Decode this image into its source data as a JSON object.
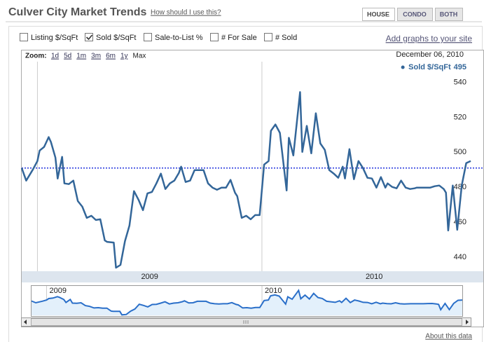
{
  "header": {
    "title": "Culver City Market Trends",
    "help_link": "How should I use this?"
  },
  "tabs": [
    {
      "label": "HOUSE",
      "active": true
    },
    {
      "label": "CONDO",
      "active": false
    },
    {
      "label": "BOTH",
      "active": false
    }
  ],
  "checkboxes": [
    {
      "label": "Listing $/SqFt",
      "checked": false
    },
    {
      "label": "Sold $/SqFt",
      "checked": true
    },
    {
      "label": "Sale-to-List %",
      "checked": false
    },
    {
      "label": "# For Sale",
      "checked": false
    },
    {
      "label": "# Sold",
      "checked": false
    }
  ],
  "embed_link": "Add graphs to your site",
  "zoom": {
    "label": "Zoom:",
    "options": [
      "1d",
      "5d",
      "1m",
      "3m",
      "6m",
      "1y",
      "Max"
    ],
    "selected": 6
  },
  "footer_link": "About this data",
  "chart_data": {
    "type": "line",
    "date_label": "December 06, 2010",
    "x": [
      2008.93,
      2008.95,
      2008.98,
      2009,
      2009.01,
      2009.03,
      2009.05,
      2009.06,
      2009.08,
      2009.09,
      2009.11,
      2009.12,
      2009.14,
      2009.16,
      2009.18,
      2009.2,
      2009.22,
      2009.24,
      2009.26,
      2009.28,
      2009.3,
      2009.31,
      2009.34,
      2009.35,
      2009.37,
      2009.39,
      2009.41,
      2009.43,
      2009.45,
      2009.47,
      2009.49,
      2009.51,
      2009.53,
      2009.55,
      2009.57,
      2009.59,
      2009.61,
      2009.63,
      2009.64,
      2009.66,
      2009.68,
      2009.7,
      2009.72,
      2009.74,
      2009.76,
      2009.78,
      2009.8,
      2009.82,
      2009.84,
      2009.86,
      2009.88,
      2009.89,
      2009.91,
      2009.93,
      2009.95,
      2009.97,
      2009.99,
      2010.01,
      2010.03,
      2010.04,
      2010.06,
      2010.08,
      2010.11,
      2010.12,
      2010.14,
      2010.17,
      2010.18,
      2010.2,
      2010.22,
      2010.24,
      2010.26,
      2010.28,
      2010.3,
      2010.32,
      2010.34,
      2010.36,
      2010.37,
      2010.39,
      2010.41,
      2010.43,
      2010.45,
      2010.47,
      2010.49,
      2010.51,
      2010.53,
      2010.55,
      2010.56,
      2010.58,
      2010.6,
      2010.62,
      2010.64,
      2010.66,
      2010.68,
      2010.69,
      2010.71,
      2010.73,
      2010.75,
      2010.77,
      2010.79,
      2010.81,
      2010.82,
      2010.83,
      2010.85,
      2010.87,
      2010.89,
      2010.91,
      2010.93
    ],
    "series": [
      {
        "name": "Sold $/SqFt",
        "color": "#336699",
        "values": [
          491,
          483.8,
          490.2,
          495,
          501,
          503.1,
          508.7,
          505.9,
          497,
          485,
          497.4,
          482.2,
          481.8,
          483.8,
          472.1,
          468.9,
          462.5,
          463.7,
          461.3,
          461.7,
          449.6,
          448.8,
          448.4,
          434,
          435.6,
          449.2,
          458.1,
          477.8,
          472.9,
          466.9,
          476.5,
          477.3,
          482.2,
          487.8,
          479,
          482.2,
          483.8,
          488.2,
          491.8,
          483,
          483.8,
          489.8,
          489.8,
          489.8,
          482.2,
          479.8,
          478.6,
          479.8,
          479.8,
          484.2,
          476.9,
          474.9,
          462.5,
          463.7,
          461.7,
          464.1,
          464.1,
          493,
          495,
          512.3,
          515.9,
          511.1,
          478.2,
          508.3,
          498.2,
          534.4,
          500.2,
          515.1,
          499.4,
          522.3,
          505.1,
          501.4,
          489.8,
          487.8,
          485.4,
          491.8,
          485,
          501.8,
          484.6,
          495,
          491,
          485.4,
          485,
          479.8,
          485.8,
          479.8,
          482.2,
          480.2,
          479.4,
          483.8,
          479.8,
          479,
          479.4,
          479.8,
          479.8,
          479.8,
          479.8,
          480.6,
          481,
          479,
          476.9,
          455.3,
          481,
          455.7,
          481,
          493.8,
          495
        ]
      }
    ],
    "reference_line": 491,
    "xlim": [
      2008.93,
      2010.93
    ],
    "xticks": [
      {
        "value": 2009.5,
        "label": "2009"
      },
      {
        "value": 2010.5,
        "label": "2010"
      }
    ],
    "xgrid": [
      2009,
      2010
    ],
    "ylim": [
      432,
      547
    ],
    "yticks": [
      440,
      460,
      480,
      500,
      520,
      540
    ],
    "grid": false
  }
}
